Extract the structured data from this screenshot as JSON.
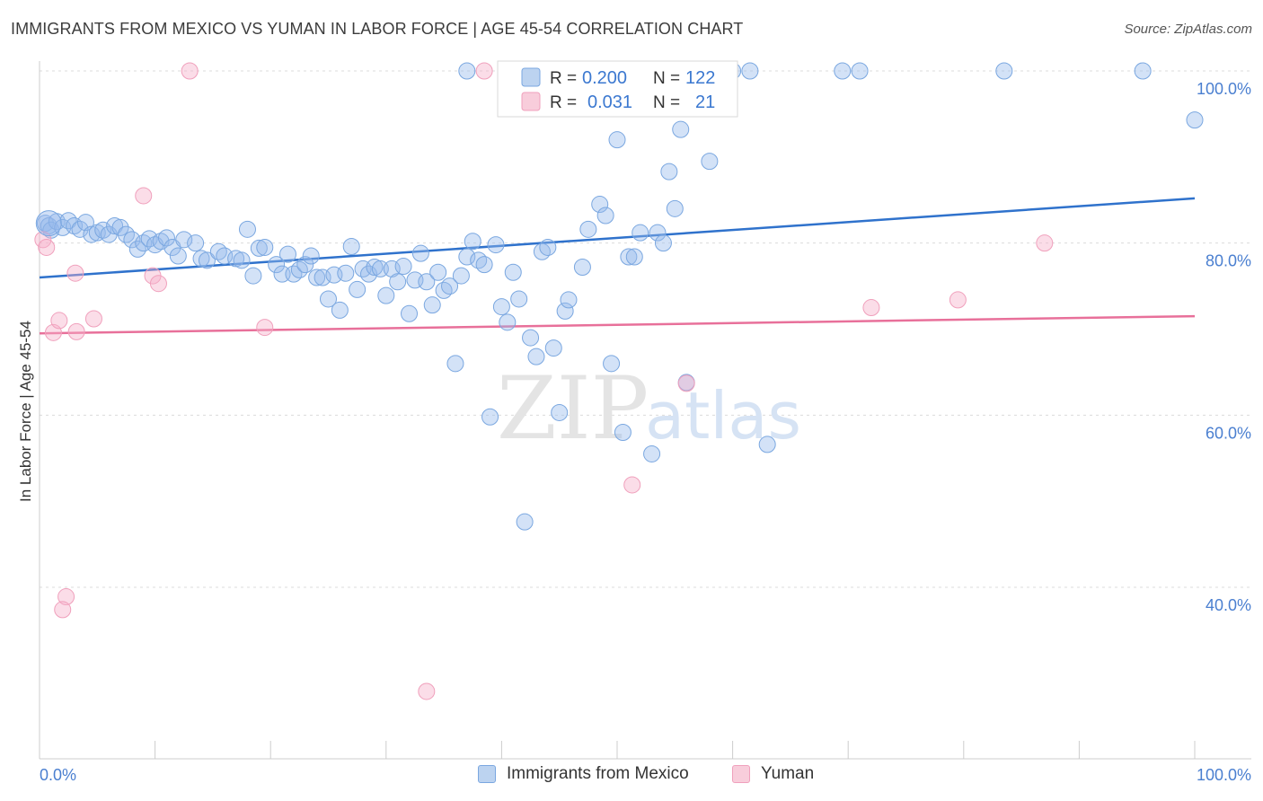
{
  "header": {
    "title": "IMMIGRANTS FROM MEXICO VS YUMAN IN LABOR FORCE | AGE 45-54 CORRELATION CHART",
    "source": "Source: ZipAtlas.com"
  },
  "watermark": {
    "zip": "ZIP",
    "atlas": "atlas"
  },
  "legend": {
    "rows": [
      {
        "r_label": "R = ",
        "r_value": "0.200",
        "n_label": "N = ",
        "n_value": "122",
        "color": "#7aa7e0"
      },
      {
        "r_label": "R = ",
        "r_value": "0.031",
        "n_label": "N = ",
        "n_value": "21",
        "color": "#f0a0bc"
      }
    ]
  },
  "bottom_legend": {
    "items": [
      {
        "label": "Immigrants from Mexico",
        "color": "#7aa7e0"
      },
      {
        "label": "Yuman",
        "color": "#f0a0bc"
      }
    ]
  },
  "chart_data": {
    "type": "scatter",
    "title": "IMMIGRANTS FROM MEXICO VS YUMAN IN LABOR FORCE | AGE 45-54 CORRELATION CHART",
    "xlabel": "",
    "ylabel": "In Labor Force | Age 45-54",
    "xlim": [
      0,
      100
    ],
    "ylim": [
      20,
      102
    ],
    "x_tick_labels": [
      "0.0%",
      "100.0%"
    ],
    "y_ticks": [
      40,
      60,
      80,
      100
    ],
    "y_tick_labels": [
      "40.0%",
      "60.0%",
      "80.0%",
      "100.0%"
    ],
    "grid": "horizontal dashed",
    "legend_placement": "top-center",
    "colors": {
      "mexico": "#7aa7e0",
      "mexico_line": "#2f72cc",
      "yuman": "#f0a0bc",
      "yuman_line": "#e8709a",
      "tick_label": "#4a7fd0"
    },
    "series": [
      {
        "name": "Immigrants from Mexico",
        "r": 0.2,
        "n": 122,
        "trend": {
          "x": [
            0,
            100
          ],
          "y": [
            76.0,
            85.2
          ]
        },
        "points": [
          [
            0.5,
            82.3
          ],
          [
            0.8,
            82.0
          ],
          [
            1.0,
            81.5
          ],
          [
            1.5,
            82.5
          ],
          [
            2.0,
            81.8
          ],
          [
            2.5,
            82.6
          ],
          [
            3.0,
            82.0
          ],
          [
            3.5,
            81.6
          ],
          [
            4.0,
            82.4
          ],
          [
            4.5,
            81.0
          ],
          [
            5.0,
            81.2
          ],
          [
            5.5,
            81.5
          ],
          [
            6.0,
            81.0
          ],
          [
            6.5,
            82.0
          ],
          [
            7.0,
            81.8
          ],
          [
            7.5,
            81.0
          ],
          [
            8.0,
            80.4
          ],
          [
            8.5,
            79.3
          ],
          [
            9.0,
            80.0
          ],
          [
            9.5,
            80.5
          ],
          [
            10.0,
            79.8
          ],
          [
            10.5,
            80.2
          ],
          [
            11.0,
            80.6
          ],
          [
            11.5,
            79.5
          ],
          [
            12.0,
            78.5
          ],
          [
            12.5,
            80.4
          ],
          [
            13.5,
            80.0
          ],
          [
            14.0,
            78.2
          ],
          [
            14.5,
            78.0
          ],
          [
            15.5,
            79.0
          ],
          [
            16.0,
            78.5
          ],
          [
            17.0,
            78.2
          ],
          [
            17.5,
            78.0
          ],
          [
            18.0,
            81.6
          ],
          [
            18.5,
            76.2
          ],
          [
            19.0,
            79.4
          ],
          [
            19.5,
            79.5
          ],
          [
            20.5,
            77.5
          ],
          [
            21.0,
            76.4
          ],
          [
            21.5,
            78.7
          ],
          [
            22.0,
            76.4
          ],
          [
            22.5,
            76.9
          ],
          [
            23.0,
            77.5
          ],
          [
            23.5,
            78.5
          ],
          [
            24.0,
            76.0
          ],
          [
            24.5,
            76.0
          ],
          [
            25.0,
            73.5
          ],
          [
            25.5,
            76.3
          ],
          [
            26.0,
            72.2
          ],
          [
            26.5,
            76.5
          ],
          [
            27.0,
            79.6
          ],
          [
            27.5,
            74.6
          ],
          [
            28.0,
            77.0
          ],
          [
            28.5,
            76.4
          ],
          [
            29.0,
            77.2
          ],
          [
            29.5,
            77.0
          ],
          [
            30.0,
            73.9
          ],
          [
            30.5,
            77.0
          ],
          [
            31.0,
            75.5
          ],
          [
            31.5,
            77.3
          ],
          [
            32.0,
            71.8
          ],
          [
            32.5,
            75.7
          ],
          [
            33.0,
            78.8
          ],
          [
            33.5,
            75.5
          ],
          [
            34.0,
            72.8
          ],
          [
            34.5,
            76.6
          ],
          [
            35.0,
            74.5
          ],
          [
            35.5,
            75.0
          ],
          [
            36.0,
            66.0
          ],
          [
            36.5,
            76.2
          ],
          [
            37.0,
            78.4
          ],
          [
            37.5,
            80.2
          ],
          [
            38.0,
            78.0
          ],
          [
            38.5,
            77.5
          ],
          [
            39.0,
            59.8
          ],
          [
            39.5,
            79.8
          ],
          [
            40.0,
            72.6
          ],
          [
            40.5,
            70.8
          ],
          [
            41.0,
            76.6
          ],
          [
            41.5,
            73.5
          ],
          [
            42.0,
            47.6
          ],
          [
            42.5,
            69.0
          ],
          [
            43.0,
            66.8
          ],
          [
            43.5,
            79.0
          ],
          [
            44.0,
            79.5
          ],
          [
            44.5,
            67.8
          ],
          [
            45.0,
            60.3
          ],
          [
            45.5,
            72.1
          ],
          [
            45.8,
            73.4
          ],
          [
            46.5,
            97.6
          ],
          [
            47.0,
            77.2
          ],
          [
            47.5,
            81.6
          ],
          [
            48.0,
            100.0
          ],
          [
            48.5,
            84.5
          ],
          [
            49.0,
            83.2
          ],
          [
            49.5,
            66.0
          ],
          [
            50.0,
            92.0
          ],
          [
            50.5,
            58.0
          ],
          [
            51.0,
            78.4
          ],
          [
            51.5,
            78.4
          ],
          [
            52.0,
            81.2
          ],
          [
            52.5,
            100.0
          ],
          [
            53.0,
            55.5
          ],
          [
            53.5,
            81.2
          ],
          [
            54.0,
            80.0
          ],
          [
            54.5,
            88.3
          ],
          [
            55.0,
            84.0
          ],
          [
            55.5,
            93.2
          ],
          [
            56.0,
            63.8
          ],
          [
            57.0,
            100.0
          ],
          [
            58.0,
            89.5
          ],
          [
            59.0,
            100.0
          ],
          [
            60.0,
            100.0
          ],
          [
            61.5,
            100.0
          ],
          [
            63.0,
            56.6
          ],
          [
            69.5,
            100.0
          ],
          [
            71.0,
            100.0
          ],
          [
            83.5,
            100.0
          ],
          [
            95.5,
            100.0
          ],
          [
            100.0,
            94.3
          ],
          [
            37.0,
            100.0
          ],
          [
            41.0,
            100.0
          ]
        ]
      },
      {
        "name": "Yuman",
        "r": 0.031,
        "n": 21,
        "trend": {
          "x": [
            0,
            100
          ],
          "y": [
            69.5,
            71.5
          ]
        },
        "points": [
          [
            0.3,
            80.4
          ],
          [
            0.6,
            79.5
          ],
          [
            1.2,
            69.6
          ],
          [
            1.7,
            71.0
          ],
          [
            2.3,
            38.9
          ],
          [
            2.0,
            37.4
          ],
          [
            3.1,
            76.5
          ],
          [
            3.2,
            69.7
          ],
          [
            4.7,
            71.2
          ],
          [
            9.0,
            85.5
          ],
          [
            9.8,
            76.2
          ],
          [
            10.3,
            75.3
          ],
          [
            13.0,
            100.0
          ],
          [
            19.5,
            70.2
          ],
          [
            33.5,
            27.9
          ],
          [
            38.5,
            100.0
          ],
          [
            51.3,
            51.9
          ],
          [
            56.0,
            63.7
          ],
          [
            72.0,
            72.5
          ],
          [
            79.5,
            73.4
          ],
          [
            87.0,
            80.0
          ]
        ]
      }
    ]
  }
}
